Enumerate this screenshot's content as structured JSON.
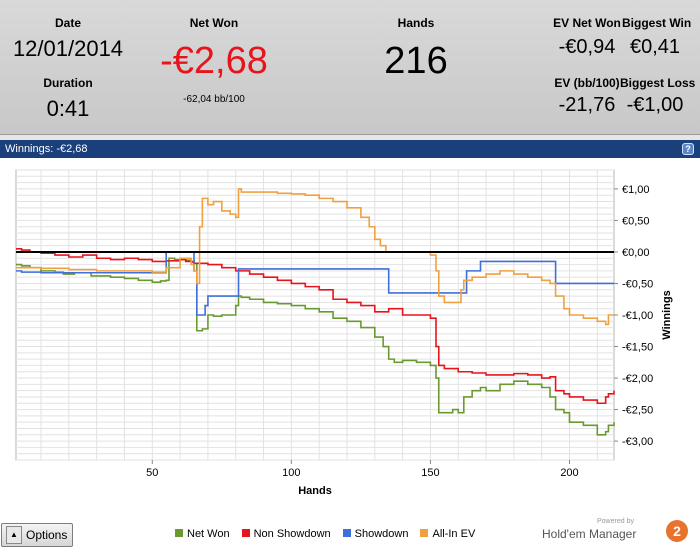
{
  "stats": {
    "date_label": "Date",
    "date_value": "12/01/2014",
    "duration_label": "Duration",
    "duration_value": "0:41",
    "net_won_label": "Net Won",
    "net_won_value": "-€2,68",
    "net_won_sub": "-62,04 bb/100",
    "hands_label": "Hands",
    "hands_value": "216",
    "ev_net_won_label": "EV Net Won",
    "ev_net_won_value": "-€0,94",
    "biggest_win_label": "Biggest Win",
    "biggest_win_value": "€0,41",
    "ev_bb_label": "EV (bb/100)",
    "ev_bb_value": "-21,76",
    "biggest_loss_label": "Biggest Loss",
    "biggest_loss_value": "-€1,00",
    "net_won_color": "#e8141c"
  },
  "panel": {
    "title": "Winnings: -€2,68",
    "help_icon": "?"
  },
  "chart_data": {
    "type": "line",
    "xlabel": "Hands",
    "ylabel": "Winnings",
    "xlim": [
      1,
      216
    ],
    "ylim": [
      -3.3,
      1.3
    ],
    "x_ticks": [
      50,
      100,
      150,
      200
    ],
    "y_ticks": [
      1.0,
      0.5,
      0.0,
      -0.5,
      -1.0,
      -1.5,
      -2.0,
      -2.5,
      -3.0
    ],
    "y_tick_labels": [
      "€1,00",
      "€0,50",
      "€0,00",
      "-€0,50",
      "-€1,00",
      "-€1,50",
      "-€2,00",
      "-€2,50",
      "-€3,00"
    ],
    "grid": true,
    "zero_line": true,
    "legend_position": "bottom",
    "series": [
      {
        "name": "Net Won",
        "color": "#6a9a2f",
        "x": [
          1,
          3,
          6,
          10,
          15,
          18,
          22,
          28,
          35,
          40,
          45,
          50,
          53,
          55,
          56,
          58,
          62,
          64,
          65,
          66,
          68,
          70,
          72,
          75,
          80,
          81,
          82,
          85,
          90,
          95,
          100,
          105,
          110,
          115,
          120,
          125,
          130,
          133,
          135,
          137,
          140,
          145,
          150,
          152,
          153,
          155,
          158,
          160,
          162,
          165,
          168,
          170,
          175,
          180,
          185,
          190,
          193,
          195,
          198,
          200,
          205,
          210,
          213,
          214,
          216
        ],
        "y": [
          -0.2,
          -0.22,
          -0.25,
          -0.3,
          -0.32,
          -0.35,
          -0.33,
          -0.38,
          -0.4,
          -0.42,
          -0.45,
          -0.48,
          -0.46,
          -0.45,
          -0.1,
          -0.12,
          -0.13,
          -0.15,
          -0.18,
          -1.25,
          -1.22,
          -1.0,
          -1.02,
          -1.0,
          -0.85,
          -0.7,
          -0.72,
          -0.75,
          -0.8,
          -0.82,
          -0.85,
          -0.9,
          -0.95,
          -1.05,
          -1.1,
          -1.2,
          -1.35,
          -1.5,
          -1.7,
          -1.75,
          -1.72,
          -1.75,
          -1.8,
          -2.0,
          -2.55,
          -2.55,
          -2.5,
          -2.55,
          -2.3,
          -2.2,
          -2.15,
          -2.2,
          -2.1,
          -2.05,
          -2.1,
          -2.15,
          -2.3,
          -2.5,
          -2.55,
          -2.7,
          -2.75,
          -2.9,
          -2.85,
          -2.75,
          -2.7
        ]
      },
      {
        "name": "Non Showdown",
        "color": "#e8141c",
        "x": [
          1,
          3,
          6,
          10,
          15,
          20,
          25,
          28,
          30,
          35,
          40,
          45,
          50,
          55,
          60,
          62,
          64,
          65,
          70,
          75,
          80,
          85,
          90,
          95,
          100,
          105,
          110,
          115,
          120,
          125,
          130,
          135,
          140,
          145,
          150,
          152,
          153,
          155,
          160,
          165,
          170,
          175,
          180,
          185,
          190,
          193,
          195,
          198,
          200,
          205,
          210,
          213,
          214,
          216
        ],
        "y": [
          0.05,
          0.03,
          0.0,
          -0.02,
          -0.05,
          -0.08,
          -0.05,
          -0.05,
          -0.1,
          -0.12,
          -0.1,
          -0.12,
          -0.15,
          -0.14,
          -0.12,
          -0.15,
          -0.16,
          -0.18,
          -0.2,
          -0.25,
          -0.3,
          -0.35,
          -0.4,
          -0.45,
          -0.5,
          -0.55,
          -0.6,
          -0.75,
          -0.8,
          -0.85,
          -0.95,
          -0.9,
          -1.0,
          -1.0,
          -1.05,
          -1.5,
          -1.8,
          -1.85,
          -1.9,
          -1.92,
          -1.95,
          -1.95,
          -1.93,
          -1.95,
          -2.0,
          -1.98,
          -2.2,
          -2.25,
          -2.3,
          -2.35,
          -2.4,
          -2.3,
          -2.25,
          -2.2
        ]
      },
      {
        "name": "Showdown",
        "color": "#3f6fd8",
        "x": [
          1,
          3,
          10,
          20,
          30,
          40,
          50,
          53,
          54,
          55,
          64,
          65,
          66,
          68,
          69,
          70,
          72,
          75,
          78,
          80,
          81,
          82,
          85,
          100,
          120,
          130,
          133,
          134,
          135,
          140,
          150,
          160,
          162,
          163,
          165,
          168,
          170,
          180,
          190,
          193,
          194,
          195,
          200,
          210,
          216
        ],
        "y": [
          -0.3,
          -0.32,
          -0.33,
          -0.33,
          -0.33,
          -0.33,
          -0.33,
          -0.33,
          -0.33,
          0.0,
          0.0,
          -0.3,
          -1.0,
          -1.0,
          -0.85,
          -0.7,
          -0.7,
          -0.7,
          -0.7,
          -0.7,
          -0.27,
          -0.27,
          -0.27,
          -0.27,
          -0.27,
          -0.27,
          -0.27,
          -0.27,
          -0.65,
          -0.65,
          -0.65,
          -0.65,
          -0.65,
          -0.3,
          -0.3,
          -0.15,
          -0.15,
          -0.15,
          -0.15,
          -0.15,
          -0.15,
          -0.5,
          -0.5,
          -0.5,
          -0.5
        ]
      },
      {
        "name": "All-In EV",
        "color": "#f0a040",
        "x": [
          1,
          3,
          10,
          20,
          30,
          40,
          50,
          55,
          60,
          64,
          65,
          66,
          67,
          68,
          70,
          72,
          75,
          78,
          80,
          81,
          82,
          85,
          90,
          95,
          100,
          105,
          110,
          115,
          120,
          125,
          128,
          130,
          132,
          133,
          134,
          135,
          140,
          145,
          150,
          152,
          153,
          155,
          158,
          160,
          161,
          162,
          165,
          170,
          175,
          180,
          185,
          190,
          193,
          195,
          198,
          200,
          205,
          210,
          213,
          214,
          216
        ],
        "y": [
          -0.25,
          -0.25,
          -0.26,
          -0.28,
          -0.3,
          -0.3,
          -0.32,
          -0.25,
          -0.1,
          -0.2,
          -0.3,
          -0.5,
          0.4,
          0.85,
          0.75,
          0.8,
          0.65,
          0.6,
          0.55,
          1.0,
          0.95,
          0.95,
          0.95,
          0.93,
          0.92,
          0.9,
          0.85,
          0.8,
          0.7,
          0.55,
          0.4,
          0.2,
          0.1,
          0.1,
          0.0,
          0.0,
          0.0,
          0.0,
          -0.05,
          -0.3,
          -0.7,
          -0.8,
          -0.8,
          -0.8,
          -0.6,
          -0.45,
          -0.4,
          -0.35,
          -0.3,
          -0.35,
          -0.4,
          -0.45,
          -0.5,
          -0.7,
          -0.9,
          -1.0,
          -1.05,
          -1.1,
          -1.15,
          -1.0,
          -1.0
        ]
      }
    ]
  },
  "footer": {
    "options_label": "Options",
    "options_icon": "triangle-up",
    "powered_by": "Powered by",
    "brand": "Hold'em Manager",
    "brand_badge": "2"
  }
}
